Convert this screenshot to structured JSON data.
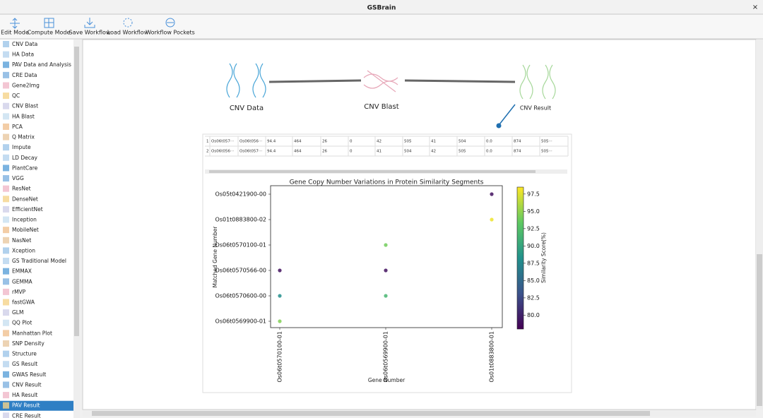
{
  "window": {
    "title": "GSBrain",
    "close": "×"
  },
  "toolbar": [
    "Edit Mode",
    "Compute Mode",
    "Save Workflow",
    "Load Workflow",
    "Workflow Pockets"
  ],
  "sidebar": {
    "items": [
      "CNV Data",
      "HA Data",
      "PAV Data and Analysis",
      "CRE Data",
      "Gene2Img",
      "QC",
      "CNV Blast",
      "HA Blast",
      "PCA",
      "Q Matrix",
      "Impute",
      "LD Decay",
      "PlantCare",
      "VGG",
      "ResNet",
      "DenseNet",
      "EfficientNet",
      "Inception",
      "MobileNet",
      "NasNet",
      "Xception",
      "GS Traditional Model",
      "EMMAX",
      "GEMMA",
      "rMVP",
      "fastGWA",
      "GLM",
      "QQ Plot",
      "Manhattan Plot",
      "SNP Density",
      "Structure",
      "GS Result",
      "GWAS Result",
      "CNV Result",
      "HA Result",
      "PAV Result",
      "CRE Result"
    ],
    "selected": "PAV Result"
  },
  "workflow": {
    "nodes": [
      "CNV Data",
      "CNV Blast",
      "CNV Result"
    ]
  },
  "table": {
    "rows": [
      [
        "1",
        "Os06t057···",
        "Os06t056···",
        "94.4",
        "464",
        "26",
        "0",
        "42",
        "505",
        "41",
        "504",
        "0.0",
        "874",
        "505···"
      ],
      [
        "2",
        "Os06t056···",
        "Os06t057···",
        "94.4",
        "464",
        "26",
        "0",
        "41",
        "504",
        "42",
        "505",
        "0.0",
        "874",
        "505···"
      ]
    ]
  },
  "chart_data": {
    "type": "scatter",
    "title": "Gene Copy Number Variations in Protein Similarity Segments",
    "x_label": "Gene Number",
    "y_label": "Matched Gene Number",
    "categories": [
      "Os06t0570100-01",
      "Os06t0569900-01",
      "Os01t0883800-01"
    ],
    "y_categories": [
      "Os06t0569900-01",
      "Os06t0570600-00",
      "Os06t0570566-00",
      "Os06t0570100-01",
      "Os01t0883800-02",
      "Os05t0421900-00"
    ],
    "points": [
      {
        "x": "Os06t0570100-01",
        "y": "Os06t0569900-01",
        "value": 94.5
      },
      {
        "x": "Os06t0570100-01",
        "y": "Os06t0570600-00",
        "value": 88
      },
      {
        "x": "Os06t0570100-01",
        "y": "Os06t0570566-00",
        "value": 79
      },
      {
        "x": "Os06t0569900-01",
        "y": "Os06t0570600-00",
        "value": 91.5
      },
      {
        "x": "Os06t0569900-01",
        "y": "Os06t0570566-00",
        "value": 79
      },
      {
        "x": "Os06t0569900-01",
        "y": "Os06t0570100-01",
        "value": 94
      },
      {
        "x": "Os01t0883800-01",
        "y": "Os01t0883800-02",
        "value": 98
      },
      {
        "x": "Os01t0883800-01",
        "y": "Os05t0421900-00",
        "value": 79
      }
    ],
    "colormap": "viridis",
    "colorbar_label": "Similarity Score(%)",
    "clim": [
      78,
      98.5
    ],
    "cticks": [
      {
        "value": 80,
        "label": "80.0"
      },
      82.5,
      {
        "value": 85,
        "label": "85.0"
      },
      87.5,
      {
        "value": 90,
        "label": "90.0"
      },
      92.5,
      {
        "value": 95,
        "label": "95.0"
      },
      97.5
    ]
  }
}
